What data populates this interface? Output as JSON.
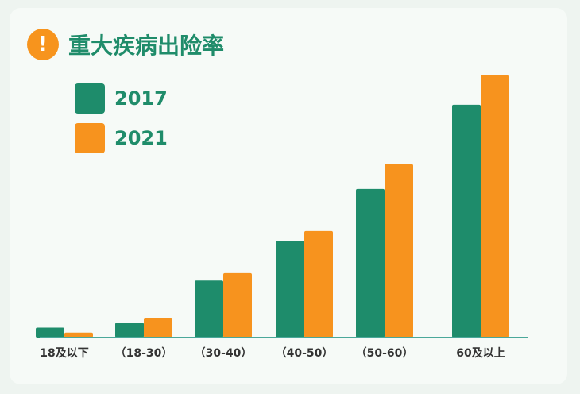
{
  "title": "重大疾病出险率",
  "colors": {
    "s2017": "#1e8c6b",
    "s2021": "#f7931e",
    "axis": "#4aa89a"
  },
  "chart_data": {
    "type": "bar",
    "title": "重大疾病出险率",
    "categories": [
      "18及以下",
      "（18-30）",
      "（30-40）",
      "（40-50）",
      "（50-60）",
      "60及以上"
    ],
    "series": [
      {
        "name": "2017",
        "values": [
          4,
          6,
          23,
          39,
          60,
          94
        ]
      },
      {
        "name": "2021",
        "values": [
          2,
          8,
          26,
          43,
          70,
          106
        ]
      }
    ],
    "ylim": [
      0,
      110
    ],
    "grid": false,
    "legend": "top-left"
  }
}
